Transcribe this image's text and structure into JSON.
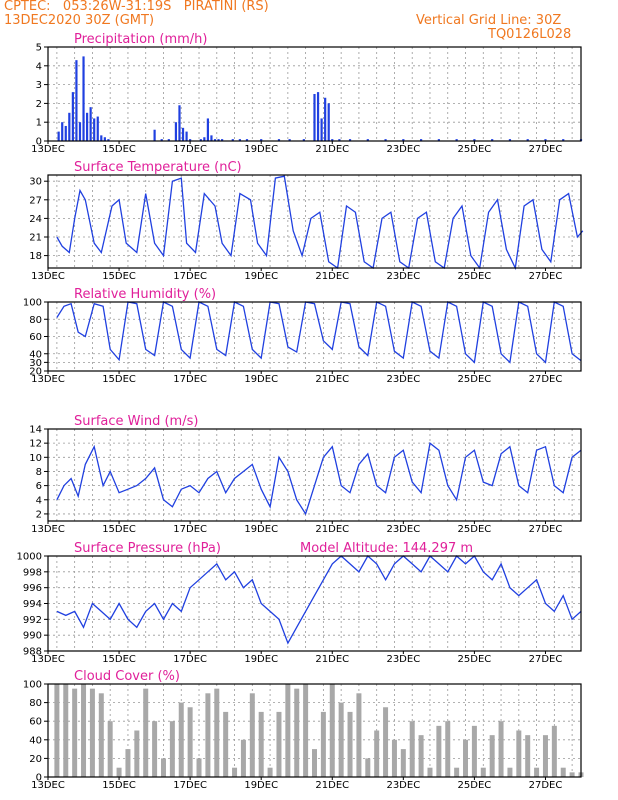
{
  "header": {
    "line1_left": "CPTEC:   053:26W-31:19S   PIRATINI (RS)",
    "line2_left": "13DEC2020 30Z (GMT)",
    "line1_right": "Vertical Grid Line: 30Z",
    "line2_right": "TQ0126L028"
  },
  "x_labels": [
    "13DEC",
    "15DEC",
    "17DEC",
    "19DEC",
    "21DEC",
    "23DEC",
    "25DEC",
    "27DEC"
  ],
  "model_altitude": "Model Altitude: 144.297 m",
  "colors": {
    "header": "#f07820",
    "title": "#e0209a",
    "line": "#2040e0",
    "bars": "#2040e0",
    "cloud": "#a8a8a8"
  },
  "chart_data": [
    {
      "type": "bar",
      "title": "Precipitation (mm/h)",
      "ylim": [
        0,
        5
      ],
      "yticks": [
        0,
        1,
        2,
        3,
        4,
        5
      ],
      "x": [
        13.3,
        13.4,
        13.5,
        13.6,
        13.7,
        13.8,
        13.9,
        14.0,
        14.1,
        14.2,
        14.3,
        14.4,
        14.5,
        14.6,
        14.7,
        16.0,
        16.2,
        16.4,
        16.6,
        16.7,
        16.8,
        16.9,
        17.0,
        17.3,
        17.4,
        17.5,
        17.6,
        17.7,
        17.8,
        17.9,
        18.2,
        18.4,
        18.6,
        19.0,
        19.5,
        19.8,
        20.2,
        20.5,
        20.6,
        20.7,
        20.8,
        20.9,
        21.0,
        21.2,
        21.5,
        22.0,
        22.5,
        23.0,
        23.5,
        24.0,
        24.5,
        25.0,
        25.5,
        26.0,
        26.5,
        27.0,
        27.5,
        28.0
      ],
      "values": [
        0.5,
        1.0,
        0.8,
        1.5,
        2.6,
        4.3,
        1.0,
        4.5,
        1.5,
        1.8,
        1.2,
        1.3,
        0.3,
        0.2,
        0.1,
        0.6,
        0.1,
        0.1,
        1.0,
        1.9,
        0.7,
        0.5,
        0.1,
        0.1,
        0.2,
        1.2,
        0.3,
        0.1,
        0.1,
        0.1,
        0.1,
        0.1,
        0.1,
        0.1,
        0.1,
        0.1,
        0.1,
        2.5,
        2.6,
        1.2,
        2.3,
        2.0,
        0.1,
        0.1,
        0.1,
        0.1,
        0.1,
        0.1,
        0.1,
        0.1,
        0.1,
        0.1,
        0.1,
        0.1,
        0.1,
        0.1,
        0.1,
        0.1
      ]
    },
    {
      "type": "line",
      "title": "Surface Temperature (nC)",
      "ylim": [
        16,
        31
      ],
      "yticks": [
        18,
        21,
        24,
        27,
        30
      ],
      "x": [
        13.25,
        13.4,
        13.6,
        13.75,
        13.9,
        14.05,
        14.3,
        14.5,
        14.8,
        15.0,
        15.2,
        15.5,
        15.75,
        16.0,
        16.25,
        16.5,
        16.75,
        16.9,
        17.15,
        17.4,
        17.7,
        17.9,
        18.15,
        18.4,
        18.7,
        18.9,
        19.15,
        19.4,
        19.65,
        19.9,
        20.15,
        20.4,
        20.65,
        20.9,
        21.15,
        21.4,
        21.65,
        21.9,
        22.15,
        22.4,
        22.65,
        22.9,
        23.15,
        23.4,
        23.65,
        23.9,
        24.15,
        24.4,
        24.65,
        24.9,
        25.15,
        25.4,
        25.65,
        25.9,
        26.15,
        26.4,
        26.65,
        26.9,
        27.15,
        27.4,
        27.65,
        27.9,
        28.05
      ],
      "values": [
        21,
        19.5,
        18.5,
        24,
        28.5,
        27,
        20,
        18.5,
        26,
        27,
        20,
        18.5,
        28,
        20,
        18,
        30,
        30.5,
        20,
        18.5,
        28,
        26,
        20,
        18,
        28,
        27,
        20,
        18,
        30.5,
        30.8,
        22,
        18,
        24,
        25,
        17,
        16,
        26,
        25,
        17,
        16,
        24,
        25,
        17,
        16,
        24,
        25,
        17,
        16,
        24,
        26,
        18,
        16,
        25,
        27,
        19,
        16,
        26,
        27,
        19,
        17,
        27,
        28,
        21,
        22
      ]
    },
    {
      "type": "line",
      "title": "Relative Humidity (%)",
      "ylim": [
        20,
        100
      ],
      "yticks": [
        20,
        30,
        40,
        60,
        80,
        100
      ],
      "x": [
        13.25,
        13.45,
        13.65,
        13.85,
        14.05,
        14.3,
        14.55,
        14.75,
        15.0,
        15.25,
        15.5,
        15.75,
        16.0,
        16.25,
        16.5,
        16.75,
        17.0,
        17.25,
        17.5,
        17.75,
        18.0,
        18.25,
        18.5,
        18.75,
        19.0,
        19.25,
        19.5,
        19.75,
        20.0,
        20.25,
        20.5,
        20.75,
        21.0,
        21.25,
        21.5,
        21.75,
        22.0,
        22.25,
        22.5,
        22.75,
        23.0,
        23.25,
        23.5,
        23.75,
        24.0,
        24.25,
        24.5,
        24.75,
        25.0,
        25.25,
        25.5,
        25.75,
        26.0,
        26.25,
        26.5,
        26.75,
        27.0,
        27.25,
        27.5,
        27.75,
        28.0
      ],
      "values": [
        82,
        95,
        98,
        65,
        60,
        98,
        95,
        45,
        33,
        100,
        98,
        45,
        38,
        100,
        95,
        45,
        35,
        100,
        95,
        45,
        38,
        100,
        95,
        45,
        35,
        100,
        98,
        48,
        42,
        100,
        98,
        55,
        45,
        100,
        98,
        48,
        38,
        100,
        95,
        43,
        35,
        100,
        95,
        43,
        35,
        100,
        95,
        40,
        30,
        100,
        95,
        40,
        30,
        100,
        95,
        40,
        30,
        100,
        95,
        40,
        32
      ]
    },
    {
      "type": "line",
      "title": "Surface Wind (m/s)",
      "ylim": [
        1,
        14
      ],
      "yticks": [
        2,
        4,
        6,
        8,
        10,
        12,
        14
      ],
      "x": [
        13.25,
        13.45,
        13.65,
        13.85,
        14.05,
        14.3,
        14.55,
        14.75,
        15.0,
        15.25,
        15.5,
        15.75,
        16.0,
        16.25,
        16.5,
        16.75,
        17.0,
        17.25,
        17.5,
        17.75,
        18.0,
        18.25,
        18.5,
        18.75,
        19.0,
        19.25,
        19.5,
        19.75,
        20.0,
        20.25,
        20.5,
        20.75,
        21.0,
        21.25,
        21.5,
        21.75,
        22.0,
        22.25,
        22.5,
        22.75,
        23.0,
        23.25,
        23.5,
        23.75,
        24.0,
        24.25,
        24.5,
        24.75,
        25.0,
        25.25,
        25.5,
        25.75,
        26.0,
        26.25,
        26.5,
        26.75,
        27.0,
        27.25,
        27.5,
        27.75,
        28.0
      ],
      "values": [
        4,
        6,
        7,
        4.5,
        9,
        11.5,
        6,
        8,
        5,
        5.5,
        6,
        7,
        8.5,
        4,
        3,
        5.5,
        6,
        5,
        7,
        8,
        5,
        7,
        8,
        9,
        5.5,
        3,
        10,
        8,
        4,
        2,
        6,
        10,
        11.5,
        6,
        5,
        9,
        10.5,
        6,
        5,
        10,
        11,
        6.5,
        5,
        12,
        11,
        6,
        4,
        10,
        11,
        6.5,
        6,
        10.5,
        11.5,
        6,
        5,
        11,
        11.5,
        6,
        5,
        10,
        11
      ]
    },
    {
      "type": "line",
      "title": "Surface Pressure (hPa)",
      "ylim": [
        988,
        1000
      ],
      "yticks": [
        988,
        990,
        992,
        994,
        996,
        998,
        1000
      ],
      "x": [
        13.25,
        13.5,
        13.75,
        14.0,
        14.25,
        14.5,
        14.75,
        15.0,
        15.25,
        15.5,
        15.75,
        16.0,
        16.25,
        16.5,
        16.75,
        17.0,
        17.25,
        17.5,
        17.75,
        18.0,
        18.25,
        18.5,
        18.75,
        19.0,
        19.25,
        19.5,
        19.75,
        20.0,
        20.25,
        20.5,
        20.75,
        21.0,
        21.25,
        21.5,
        21.75,
        22.0,
        22.25,
        22.5,
        22.75,
        23.0,
        23.25,
        23.5,
        23.75,
        24.0,
        24.25,
        24.5,
        24.75,
        25.0,
        25.25,
        25.5,
        25.75,
        26.0,
        26.25,
        26.5,
        26.75,
        27.0,
        27.25,
        27.5,
        27.75,
        28.0
      ],
      "values": [
        993,
        992.5,
        993,
        991,
        994,
        993,
        992,
        994,
        992,
        991,
        993,
        994,
        992,
        994,
        993,
        996,
        997,
        998,
        999,
        997,
        998,
        996,
        997,
        994,
        993,
        992,
        989,
        991,
        993,
        995,
        997,
        999,
        1000,
        999,
        998,
        1000,
        999,
        997,
        999,
        1000,
        999,
        998,
        1000,
        999,
        998,
        1000,
        999,
        1000,
        998,
        997,
        999,
        996,
        995,
        996,
        997,
        994,
        993,
        995,
        992,
        993
      ]
    },
    {
      "type": "bar",
      "title": "Cloud Cover (%)",
      "ylim": [
        0,
        100
      ],
      "yticks": [
        0,
        20,
        40,
        60,
        80,
        100
      ],
      "x": [
        13.25,
        13.5,
        13.75,
        14.0,
        14.25,
        14.5,
        14.75,
        15.0,
        15.25,
        15.5,
        15.75,
        16.0,
        16.25,
        16.5,
        16.75,
        17.0,
        17.25,
        17.5,
        17.75,
        18.0,
        18.25,
        18.5,
        18.75,
        19.0,
        19.25,
        19.5,
        19.75,
        20.0,
        20.25,
        20.5,
        20.75,
        21.0,
        21.25,
        21.5,
        21.75,
        22.0,
        22.25,
        22.5,
        22.75,
        23.0,
        23.25,
        23.5,
        23.75,
        24.0,
        24.25,
        24.5,
        24.75,
        25.0,
        25.25,
        25.5,
        25.75,
        26.0,
        26.25,
        26.5,
        26.75,
        27.0,
        27.25,
        27.5,
        27.75,
        28.0
      ],
      "values": [
        100,
        100,
        95,
        100,
        95,
        90,
        60,
        10,
        30,
        50,
        95,
        60,
        20,
        60,
        80,
        75,
        20,
        90,
        95,
        70,
        10,
        40,
        90,
        70,
        10,
        70,
        100,
        95,
        100,
        30,
        70,
        100,
        80,
        70,
        90,
        20,
        50,
        75,
        40,
        30,
        60,
        45,
        10,
        55,
        60,
        10,
        40,
        55,
        10,
        45,
        60,
        10,
        50,
        45,
        10,
        45,
        55,
        10,
        5,
        5
      ]
    }
  ]
}
